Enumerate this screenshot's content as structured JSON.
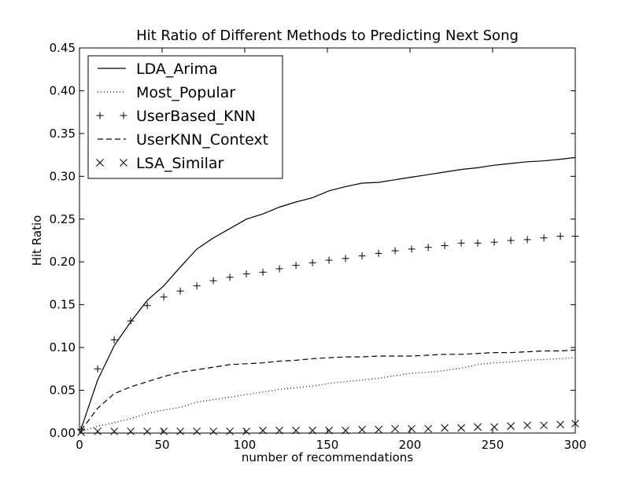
{
  "chart_data": {
    "type": "line",
    "title": "Hit Ratio of Different Methods to Predicting Next Song",
    "xlabel": "number of recommendations",
    "ylabel": "Hit Ratio",
    "xlim": [
      0,
      300
    ],
    "ylim": [
      0,
      0.45
    ],
    "x_ticks": [
      "0",
      "50",
      "100",
      "150",
      "200",
      "250",
      "300"
    ],
    "y_ticks": [
      "0.00",
      "0.05",
      "0.10",
      "0.15",
      "0.20",
      "0.25",
      "0.30",
      "0.35",
      "0.40",
      "0.45"
    ],
    "grid": false,
    "legend_position": "top-left",
    "x": [
      1,
      11,
      21,
      31,
      41,
      51,
      61,
      71,
      81,
      91,
      101,
      111,
      121,
      131,
      141,
      151,
      161,
      171,
      181,
      191,
      201,
      211,
      221,
      231,
      241,
      251,
      261,
      271,
      281,
      291,
      300
    ],
    "series": [
      {
        "name": "LDA_Arima",
        "style": "solid",
        "color": "#000000",
        "values": [
          0.005,
          0.062,
          0.102,
          0.13,
          0.155,
          0.172,
          0.194,
          0.215,
          0.228,
          0.239,
          0.25,
          0.256,
          0.264,
          0.27,
          0.275,
          0.283,
          0.288,
          0.292,
          0.293,
          0.296,
          0.299,
          0.302,
          0.305,
          0.308,
          0.31,
          0.313,
          0.315,
          0.317,
          0.318,
          0.32,
          0.322
        ]
      },
      {
        "name": "Most_Popular",
        "style": "dotted",
        "color": "#000000",
        "values": [
          0.002,
          0.008,
          0.012,
          0.017,
          0.023,
          0.027,
          0.03,
          0.036,
          0.039,
          0.042,
          0.045,
          0.048,
          0.051,
          0.053,
          0.055,
          0.058,
          0.06,
          0.062,
          0.064,
          0.067,
          0.07,
          0.071,
          0.073,
          0.076,
          0.08,
          0.082,
          0.083,
          0.085,
          0.086,
          0.087,
          0.088
        ]
      },
      {
        "name": "UserBased_KNN",
        "style": "plus",
        "color": "#000000",
        "values": [
          0.004,
          0.075,
          0.109,
          0.131,
          0.149,
          0.159,
          0.166,
          0.172,
          0.178,
          0.182,
          0.186,
          0.188,
          0.192,
          0.196,
          0.199,
          0.202,
          0.204,
          0.207,
          0.21,
          0.213,
          0.215,
          0.217,
          0.219,
          0.222,
          0.222,
          0.223,
          0.225,
          0.226,
          0.228,
          0.23,
          0.23
        ]
      },
      {
        "name": "UserKNN_Context",
        "style": "dashed",
        "color": "#000000",
        "values": [
          0.003,
          0.029,
          0.046,
          0.054,
          0.06,
          0.066,
          0.071,
          0.074,
          0.077,
          0.08,
          0.081,
          0.082,
          0.084,
          0.085,
          0.087,
          0.088,
          0.089,
          0.089,
          0.09,
          0.09,
          0.09,
          0.091,
          0.092,
          0.092,
          0.093,
          0.094,
          0.094,
          0.095,
          0.096,
          0.096,
          0.097
        ]
      },
      {
        "name": "LSA_Similar",
        "style": "x",
        "color": "#000000",
        "values": [
          0.001,
          0.002,
          0.002,
          0.002,
          0.002,
          0.002,
          0.002,
          0.002,
          0.002,
          0.002,
          0.002,
          0.003,
          0.003,
          0.003,
          0.003,
          0.003,
          0.003,
          0.004,
          0.004,
          0.005,
          0.005,
          0.005,
          0.006,
          0.006,
          0.007,
          0.007,
          0.008,
          0.009,
          0.009,
          0.01,
          0.011
        ]
      }
    ]
  }
}
